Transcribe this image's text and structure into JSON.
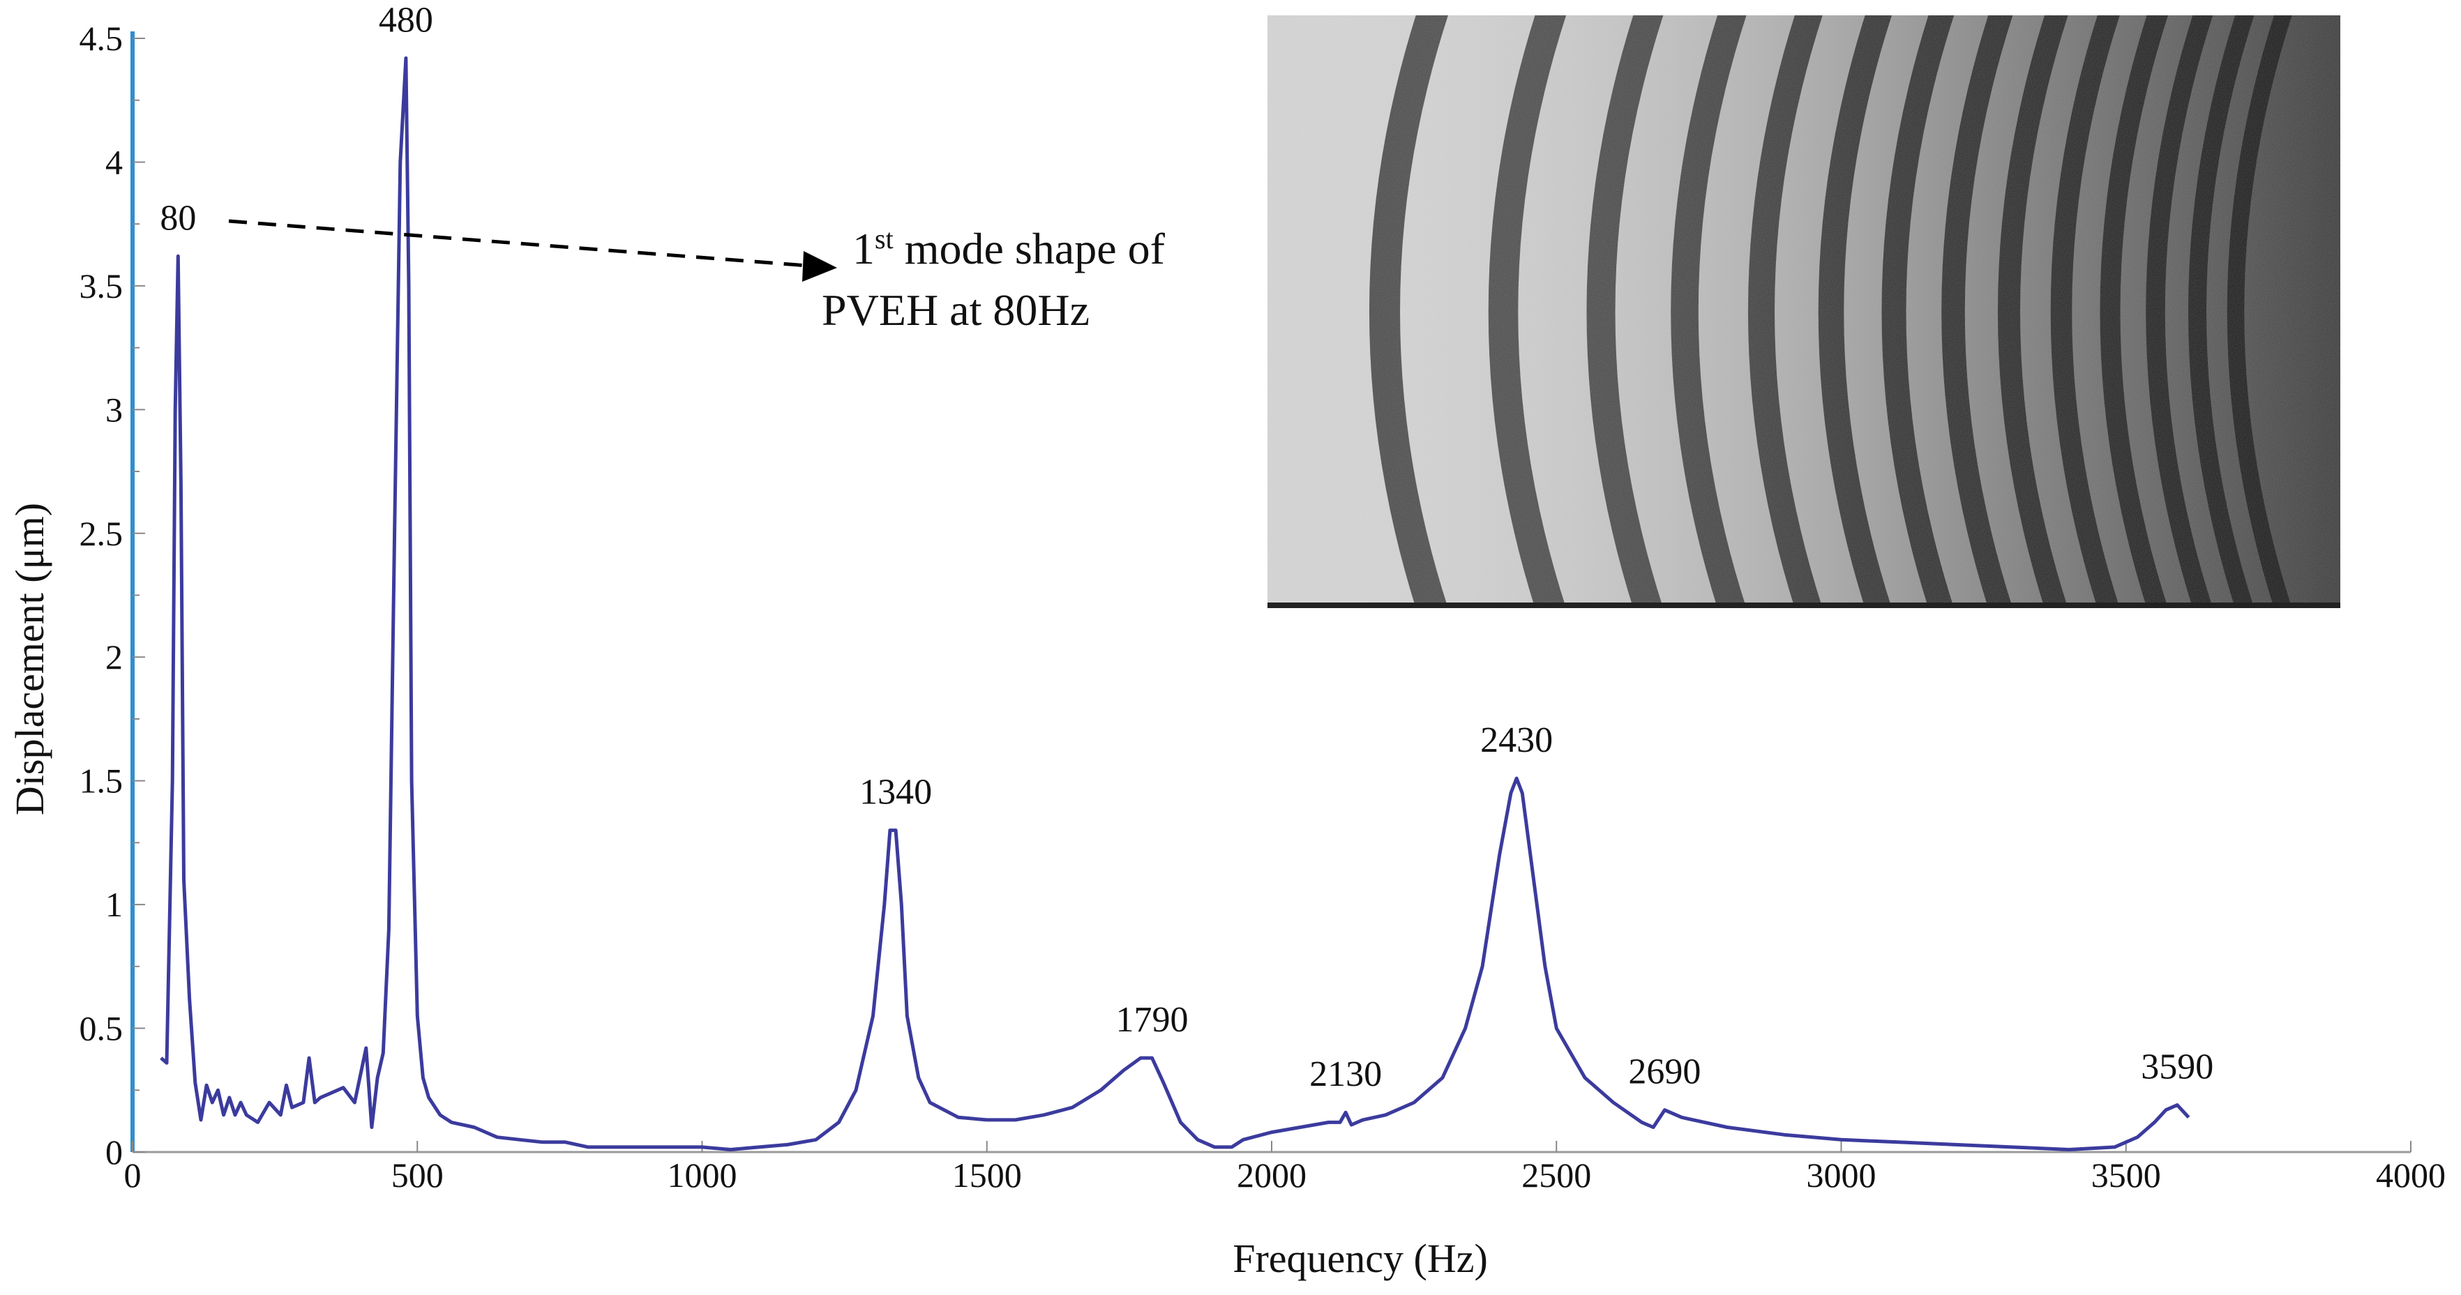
{
  "chart_data": {
    "type": "line",
    "title": "",
    "xlabel": "Frequency (Hz)",
    "ylabel": "Displacement (μm)",
    "xlim": [
      0,
      4000
    ],
    "ylim": [
      0,
      4.5
    ],
    "x_ticks": [
      "0",
      "500",
      "1000",
      "1500",
      "2000",
      "2500",
      "3000",
      "3500",
      "4000"
    ],
    "y_ticks": [
      "0",
      "0.5",
      "1",
      "1.5",
      "2",
      "2.5",
      "3",
      "3.5",
      "4",
      "4.5"
    ],
    "grid": false,
    "legend": "none",
    "series": [
      {
        "x": [
          50,
          60,
          70,
          75,
          80,
          85,
          90,
          100,
          110,
          120,
          130,
          140,
          150,
          160,
          170,
          180,
          190,
          200,
          220,
          240,
          260,
          270,
          280,
          300,
          310,
          320,
          330,
          350,
          370,
          390,
          410,
          420,
          430,
          440,
          450,
          460,
          470,
          480,
          485,
          490,
          500,
          510,
          520,
          540,
          560,
          600,
          640,
          680,
          720,
          760,
          800,
          850,
          900,
          950,
          1000,
          1050,
          1100,
          1150,
          1200,
          1240,
          1270,
          1300,
          1320,
          1330,
          1340,
          1350,
          1360,
          1380,
          1400,
          1450,
          1500,
          1550,
          1600,
          1650,
          1700,
          1740,
          1770,
          1790,
          1810,
          1840,
          1870,
          1900,
          1930,
          1950,
          2000,
          2050,
          2100,
          2120,
          2130,
          2140,
          2160,
          2200,
          2250,
          2300,
          2340,
          2370,
          2400,
          2420,
          2430,
          2440,
          2460,
          2480,
          2500,
          2550,
          2600,
          2650,
          2670,
          2690,
          2720,
          2800,
          2900,
          3000,
          3100,
          3200,
          3300,
          3400,
          3480,
          3520,
          3550,
          3570,
          3590,
          3610
        ],
        "y": [
          0.38,
          0.36,
          1.5,
          3.0,
          3.62,
          2.7,
          1.1,
          0.62,
          0.28,
          0.13,
          0.27,
          0.2,
          0.25,
          0.15,
          0.22,
          0.15,
          0.2,
          0.15,
          0.12,
          0.2,
          0.15,
          0.27,
          0.18,
          0.2,
          0.38,
          0.2,
          0.22,
          0.24,
          0.26,
          0.2,
          0.42,
          0.1,
          0.3,
          0.4,
          0.9,
          2.5,
          4.0,
          4.42,
          3.5,
          1.5,
          0.55,
          0.3,
          0.22,
          0.15,
          0.12,
          0.1,
          0.06,
          0.05,
          0.04,
          0.04,
          0.02,
          0.02,
          0.02,
          0.02,
          0.02,
          0.01,
          0.02,
          0.03,
          0.05,
          0.12,
          0.25,
          0.55,
          1.0,
          1.3,
          1.3,
          1.0,
          0.55,
          0.3,
          0.2,
          0.14,
          0.13,
          0.13,
          0.15,
          0.18,
          0.25,
          0.33,
          0.38,
          0.38,
          0.28,
          0.12,
          0.05,
          0.02,
          0.02,
          0.05,
          0.08,
          0.1,
          0.12,
          0.12,
          0.16,
          0.11,
          0.13,
          0.15,
          0.2,
          0.3,
          0.5,
          0.75,
          1.2,
          1.45,
          1.51,
          1.45,
          1.1,
          0.75,
          0.5,
          0.3,
          0.2,
          0.12,
          0.1,
          0.17,
          0.14,
          0.1,
          0.07,
          0.05,
          0.04,
          0.03,
          0.02,
          0.01,
          0.02,
          0.06,
          0.12,
          0.17,
          0.19,
          0.14
        ]
      }
    ],
    "peak_labels": [
      {
        "x": 80,
        "y": 3.62,
        "text": "80"
      },
      {
        "x": 480,
        "y": 4.42,
        "text": "480"
      },
      {
        "x": 1340,
        "y": 1.3,
        "text": "1340"
      },
      {
        "x": 1790,
        "y": 0.38,
        "text": "1790"
      },
      {
        "x": 2130,
        "y": 0.16,
        "text": "2130"
      },
      {
        "x": 2430,
        "y": 1.51,
        "text": "2430"
      },
      {
        "x": 2690,
        "y": 0.17,
        "text": "2690"
      },
      {
        "x": 3590,
        "y": 0.19,
        "text": "3590"
      }
    ],
    "annotation": {
      "line1_base": "1",
      "line1_sup": "st",
      "line1_rest": " mode shape of",
      "line2": "PVEH at 80Hz"
    },
    "colors": {
      "series": "#3b3b9e",
      "y_axis": "#2f8fcf",
      "x_axis": "#9a9a9a"
    }
  }
}
